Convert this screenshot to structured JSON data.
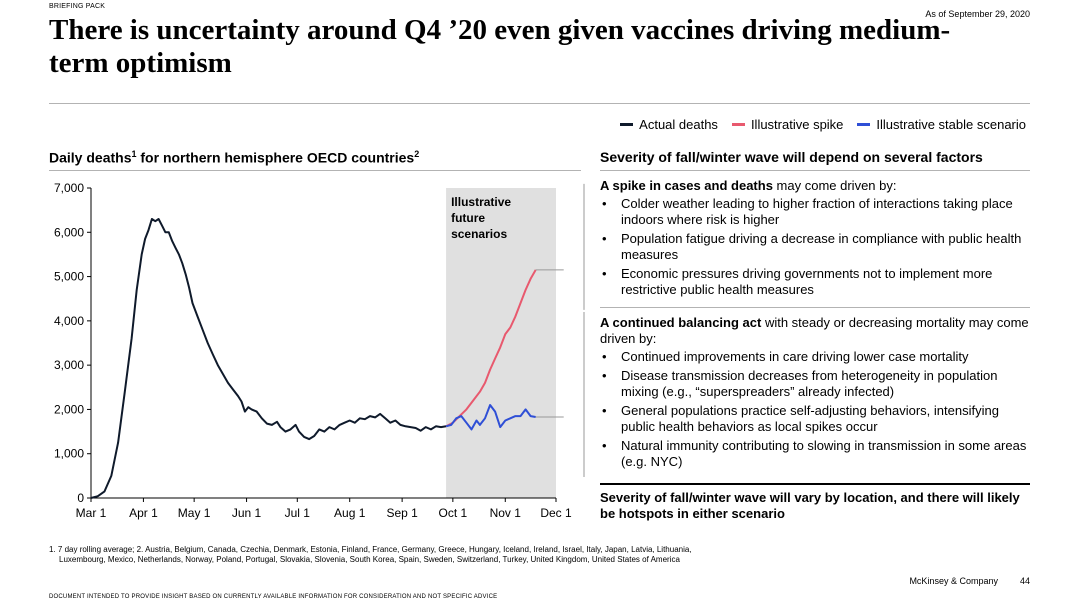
{
  "header": {
    "section_label": "BRIEFING PACK",
    "as_of": "As of September 29, 2020",
    "title": "There is uncertainty around Q4 ’20 even given vaccines driving medium-term optimism"
  },
  "legend": {
    "actual": "Actual deaths",
    "spike": "Illustrative spike",
    "stable": "Illustrative stable scenario"
  },
  "colors": {
    "actual": "#0f1a2b",
    "spike": "#e8596e",
    "stable": "#2f4fd6",
    "shade": "#e0e0e0"
  },
  "chart_title": {
    "text": "Daily deaths",
    "sup1": "1",
    "mid": " for northern hemisphere OECD countries",
    "sup2": "2"
  },
  "chart_data": {
    "type": "line",
    "title": "Daily deaths for northern hemisphere OECD countries",
    "ylim": [
      0,
      7000
    ],
    "yticks": [
      0,
      1000,
      2000,
      3000,
      4000,
      5000,
      6000,
      7000
    ],
    "ytick_labels": [
      "0",
      "1,000",
      "2,000",
      "3,000",
      "4,000",
      "5,000",
      "6,000",
      "7,000"
    ],
    "xlim_days": [
      0,
      275
    ],
    "xticks": [
      {
        "day": 0,
        "label": "Mar 1"
      },
      {
        "day": 31,
        "label": "Apr 1"
      },
      {
        "day": 61,
        "label": "May 1"
      },
      {
        "day": 92,
        "label": "Jun 1"
      },
      {
        "day": 122,
        "label": "Jul 1"
      },
      {
        "day": 153,
        "label": "Aug 1"
      },
      {
        "day": 184,
        "label": "Sep 1"
      },
      {
        "day": 214,
        "label": "Oct 1"
      },
      {
        "day": 245,
        "label": "Nov 1"
      },
      {
        "day": 275,
        "label": "Dec 1"
      }
    ],
    "shaded_region": {
      "start_day": 210,
      "end_day": 275,
      "label": [
        "Illustrative",
        "future",
        "scenarios"
      ]
    },
    "series": [
      {
        "name": "Actual deaths",
        "key": "actual",
        "points": [
          [
            0,
            0
          ],
          [
            4,
            40
          ],
          [
            8,
            150
          ],
          [
            12,
            500
          ],
          [
            16,
            1250
          ],
          [
            20,
            2400
          ],
          [
            24,
            3600
          ],
          [
            27,
            4700
          ],
          [
            30,
            5500
          ],
          [
            32,
            5850
          ],
          [
            34,
            6050
          ],
          [
            36,
            6300
          ],
          [
            38,
            6250
          ],
          [
            40,
            6300
          ],
          [
            42,
            6150
          ],
          [
            44,
            6000
          ],
          [
            46,
            6000
          ],
          [
            48,
            5800
          ],
          [
            50,
            5650
          ],
          [
            52,
            5500
          ],
          [
            54,
            5300
          ],
          [
            56,
            5050
          ],
          [
            58,
            4750
          ],
          [
            60,
            4400
          ],
          [
            63,
            4100
          ],
          [
            66,
            3800
          ],
          [
            69,
            3500
          ],
          [
            72,
            3250
          ],
          [
            75,
            3000
          ],
          [
            78,
            2800
          ],
          [
            81,
            2600
          ],
          [
            84,
            2450
          ],
          [
            87,
            2300
          ],
          [
            89,
            2180
          ],
          [
            91,
            1950
          ],
          [
            93,
            2050
          ],
          [
            95,
            2000
          ],
          [
            98,
            1950
          ],
          [
            101,
            1800
          ],
          [
            104,
            1680
          ],
          [
            107,
            1650
          ],
          [
            110,
            1720
          ],
          [
            112,
            1600
          ],
          [
            115,
            1500
          ],
          [
            118,
            1550
          ],
          [
            121,
            1650
          ],
          [
            123,
            1500
          ],
          [
            126,
            1380
          ],
          [
            129,
            1330
          ],
          [
            132,
            1400
          ],
          [
            135,
            1550
          ],
          [
            138,
            1500
          ],
          [
            141,
            1600
          ],
          [
            144,
            1550
          ],
          [
            147,
            1650
          ],
          [
            150,
            1700
          ],
          [
            153,
            1750
          ],
          [
            156,
            1700
          ],
          [
            159,
            1800
          ],
          [
            162,
            1780
          ],
          [
            165,
            1850
          ],
          [
            168,
            1820
          ],
          [
            171,
            1900
          ],
          [
            174,
            1800
          ],
          [
            177,
            1700
          ],
          [
            180,
            1750
          ],
          [
            183,
            1650
          ],
          [
            186,
            1620
          ],
          [
            189,
            1600
          ],
          [
            192,
            1580
          ],
          [
            195,
            1520
          ],
          [
            198,
            1600
          ],
          [
            201,
            1550
          ],
          [
            204,
            1620
          ],
          [
            207,
            1600
          ],
          [
            210,
            1620
          ]
        ]
      },
      {
        "name": "Illustrative spike",
        "key": "spike",
        "points": [
          [
            210,
            1620
          ],
          [
            214,
            1700
          ],
          [
            218,
            1850
          ],
          [
            222,
            2000
          ],
          [
            226,
            2200
          ],
          [
            230,
            2400
          ],
          [
            233,
            2600
          ],
          [
            236,
            2900
          ],
          [
            239,
            3150
          ],
          [
            242,
            3400
          ],
          [
            245,
            3700
          ],
          [
            248,
            3850
          ],
          [
            251,
            4100
          ],
          [
            254,
            4400
          ],
          [
            257,
            4700
          ],
          [
            260,
            4950
          ],
          [
            263,
            5150
          ]
        ]
      },
      {
        "name": "Illustrative stable scenario",
        "key": "stable",
        "points": [
          [
            210,
            1620
          ],
          [
            213,
            1650
          ],
          [
            216,
            1800
          ],
          [
            219,
            1850
          ],
          [
            222,
            1700
          ],
          [
            225,
            1550
          ],
          [
            228,
            1750
          ],
          [
            230,
            1650
          ],
          [
            233,
            1800
          ],
          [
            236,
            2100
          ],
          [
            239,
            1950
          ],
          [
            242,
            1600
          ],
          [
            245,
            1750
          ],
          [
            248,
            1800
          ],
          [
            251,
            1850
          ],
          [
            254,
            1850
          ],
          [
            257,
            2000
          ],
          [
            260,
            1850
          ],
          [
            263,
            1830
          ]
        ]
      }
    ]
  },
  "panel": {
    "title": "Severity of fall/winter wave will depend on several factors",
    "spike": {
      "lead_bold": "A spike in cases and deaths",
      "lead_rest": " may come driven by:",
      "bullets": [
        "Colder weather leading to higher fraction of interactions taking place indoors where risk is higher",
        "Population fatigue driving a decrease in compliance with public health measures",
        "Economic pressures driving governments not to implement more restrictive public health measures"
      ]
    },
    "balance": {
      "lead_bold": "A continued balancing act",
      "lead_rest": " with steady or decreasing mortality may come driven by:",
      "bullets": [
        "Continued improvements in care driving lower case mortality",
        "Disease transmission decreases from heterogeneity in population mixing (e.g., “superspreaders” already infected)",
        "General populations practice self-adjusting behaviors, intensifying public health behaviors as local spikes occur",
        "Natural immunity contributing to slowing in transmission in some areas (e.g. NYC)"
      ]
    },
    "conclusion": "Severity of fall/winter wave will vary by location, and there will likely be hotspots in either scenario"
  },
  "footnote": {
    "line1": "1. 7 day rolling average; 2. Austria, Belgium, Canada, Czechia, Denmark, Estonia, Finland, France, Germany, Greece, Hungary, Iceland, Ireland, Israel, Italy, Japan, Latvia, Lithuania,",
    "line2": "Luxembourg, Mexico, Netherlands, Norway, Poland, Portugal, Slovakia, Slovenia, South Korea, Spain, Sweden, Switzerland, Turkey, United Kingdom, United States of America"
  },
  "footer": {
    "brand": "McKinsey & Company",
    "page": "44",
    "disclaimer": "DOCUMENT INTENDED TO PROVIDE INSIGHT BASED ON CURRENTLY AVAILABLE INFORMATION FOR CONSIDERATION AND NOT SPECIFIC ADVICE"
  }
}
